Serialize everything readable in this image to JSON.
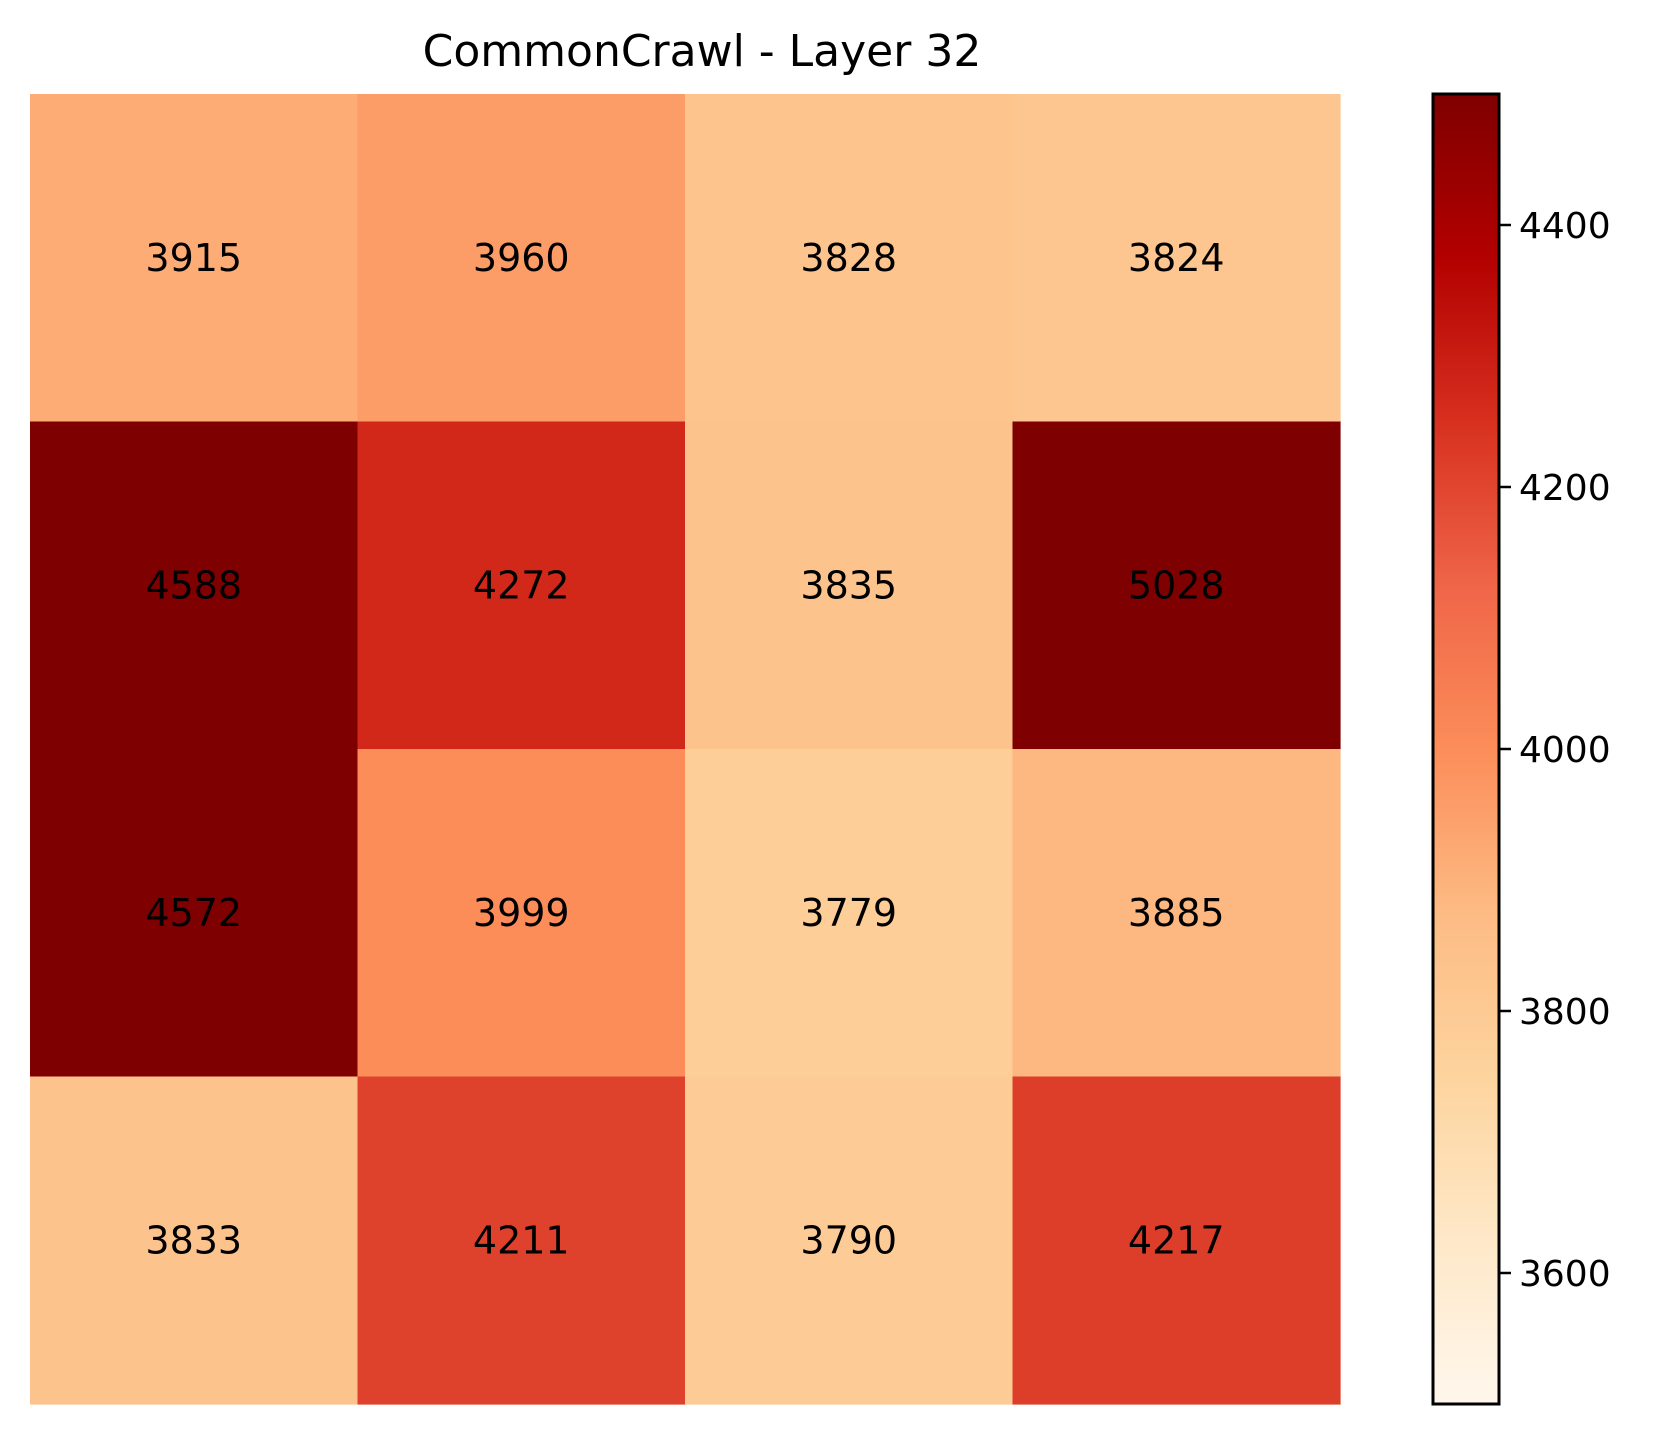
{
  "chart_data": {
    "type": "heatmap",
    "title": "CommonCrawl - Layer 32",
    "rows": 4,
    "cols": 4,
    "values": [
      [
        3915,
        3960,
        3828,
        3824
      ],
      [
        4588,
        4272,
        3835,
        5028
      ],
      [
        4572,
        3999,
        3779,
        3885
      ],
      [
        3833,
        4211,
        3790,
        4217
      ]
    ],
    "colorbar": {
      "vmin": 3500,
      "vmax": 4500,
      "ticks": [
        3600,
        3800,
        4000,
        4200,
        4400
      ],
      "colormap": "OrRd"
    },
    "axes_visible": false
  }
}
